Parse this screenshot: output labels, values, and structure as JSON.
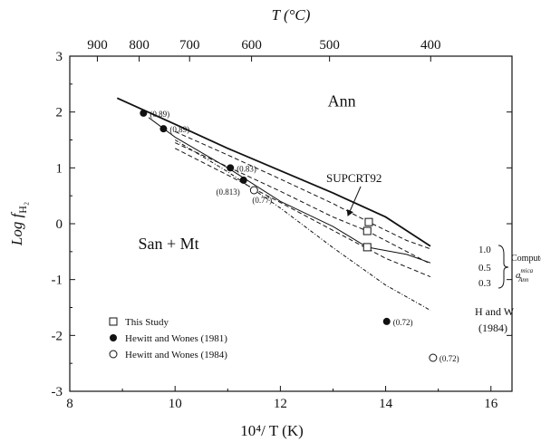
{
  "chart_data": {
    "type": "scatter",
    "xlabel": "10⁴/ T (K)",
    "x2label": "T (°C)",
    "ylabel": "Log f",
    "ylabel_sub": "H₂",
    "xlim": [
      8,
      16.4
    ],
    "ylim": [
      -3,
      3
    ],
    "x_ticks": [
      8,
      10,
      12,
      14,
      16
    ],
    "y_ticks": [
      -3,
      -2,
      -1,
      0,
      1,
      2,
      3
    ],
    "x2_ticks": [
      900,
      800,
      700,
      600,
      500,
      400
    ],
    "grid": false,
    "regions": [
      {
        "label": "Ann",
        "x": 12.9,
        "y": 2.1
      },
      {
        "label": "San + Mt",
        "x": 9.3,
        "y": -0.45
      }
    ],
    "series": [
      {
        "name": "This Study",
        "marker": "open-square",
        "points": [
          [
            13.68,
            0.03
          ],
          [
            13.65,
            -0.13
          ],
          [
            13.65,
            -0.42
          ]
        ],
        "labels": []
      },
      {
        "name": "Hewitt and Wones (1981)",
        "marker": "filled-circle",
        "points": [
          [
            9.4,
            1.98
          ],
          [
            9.78,
            1.7
          ],
          [
            11.05,
            1.0
          ],
          [
            11.3,
            0.78
          ],
          [
            14.02,
            -1.75
          ]
        ],
        "labels": [
          "(0.89)",
          "(0.89)",
          "(0.83)",
          "(0.813)",
          "(0.72)"
        ]
      },
      {
        "name": "Hewitt and Wones (1984)",
        "marker": "open-circle",
        "points": [
          [
            11.5,
            0.6
          ],
          [
            14.9,
            -2.4
          ]
        ],
        "labels": [
          "(0.77)",
          "(0.72)"
        ]
      }
    ],
    "curves": [
      {
        "id": "supcrt92",
        "style": "solid",
        "points": [
          [
            8.9,
            2.25
          ],
          [
            10.0,
            1.78
          ],
          [
            11.0,
            1.35
          ],
          [
            12.0,
            0.95
          ],
          [
            13.0,
            0.55
          ],
          [
            14.0,
            0.12
          ],
          [
            14.85,
            -0.4
          ]
        ]
      },
      {
        "id": "a05-solid",
        "style": "solid",
        "points": [
          [
            9.5,
            1.9
          ],
          [
            10.0,
            1.55
          ],
          [
            11.0,
            1.0
          ],
          [
            12.0,
            0.4
          ],
          [
            13.0,
            -0.05
          ],
          [
            13.65,
            -0.42
          ],
          [
            14.4,
            -0.55
          ],
          [
            14.85,
            -0.7
          ]
        ]
      },
      {
        "id": "a10-dashed",
        "style": "dashed",
        "points": [
          [
            10.0,
            1.65
          ],
          [
            11.0,
            1.23
          ],
          [
            12.0,
            0.8
          ],
          [
            13.0,
            0.36
          ],
          [
            13.68,
            0.03
          ],
          [
            14.4,
            -0.3
          ],
          [
            14.85,
            -0.45
          ]
        ]
      },
      {
        "id": "a05-dashed",
        "style": "dashed",
        "points": [
          [
            10.0,
            1.45
          ],
          [
            11.0,
            1.02
          ],
          [
            12.0,
            0.58
          ],
          [
            13.0,
            0.12
          ],
          [
            13.65,
            -0.13
          ],
          [
            14.85,
            -0.72
          ]
        ]
      },
      {
        "id": "a03-dashed",
        "style": "dashed",
        "points": [
          [
            10.0,
            1.35
          ],
          [
            11.0,
            0.87
          ],
          [
            12.0,
            0.38
          ],
          [
            13.0,
            -0.12
          ],
          [
            14.0,
            -0.62
          ],
          [
            14.85,
            -0.95
          ]
        ]
      },
      {
        "id": "hw1984",
        "style": "dashdot",
        "points": [
          [
            10.0,
            1.5
          ],
          [
            11.0,
            0.93
          ],
          [
            12.0,
            0.28
          ],
          [
            13.0,
            -0.43
          ],
          [
            14.0,
            -1.1
          ],
          [
            14.85,
            -1.55
          ]
        ]
      }
    ],
    "annotations": {
      "supcrt_label": "SUPCRT92",
      "curve_ticks": [
        "1.0",
        "0.5",
        "0.3"
      ],
      "computed_label": "Computed",
      "activity_label": "a",
      "activity_sup": "mica",
      "activity_sub": "Ann",
      "hw_label_line1": "H and W",
      "hw_label_line2": "(1984)"
    }
  }
}
